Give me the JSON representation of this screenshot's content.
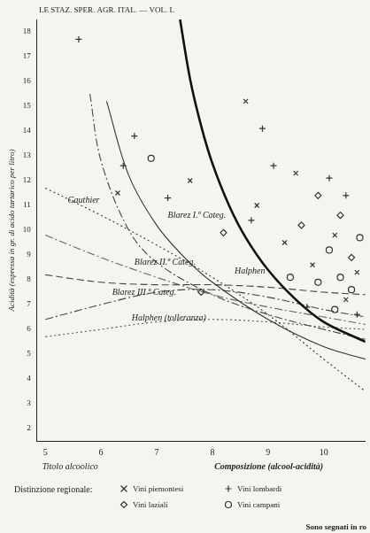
{
  "chart_data": {
    "type": "scatter",
    "title": "LE STAZ. SPER. AGR. ITAL. — VOL. L",
    "ylabel": "Acidità (espressa in gr. di acido tartarico per litro)",
    "xlabel": [
      "Titolo alcoolico",
      "Composizione (alcool-acidità)"
    ],
    "xlim": [
      4.85,
      10.75
    ],
    "xticks": [
      5,
      6,
      7,
      8,
      9,
      10
    ],
    "ylim": [
      1.5,
      18.5
    ],
    "yticks": [
      2,
      3,
      4,
      5,
      6,
      7,
      8,
      9,
      10,
      11,
      12,
      13,
      14,
      15,
      16,
      17,
      18
    ],
    "grid": false,
    "legend": "bottom",
    "legend_title": "Distinzione regionale:",
    "footnote": "Sono segnati in ro",
    "series": [
      {
        "name": "Vini piemontesi",
        "type": "scatter",
        "marker": "x",
        "color": "#333333",
        "x": [
          6.3,
          8.8,
          9.5,
          10.2,
          9.8,
          10.4,
          8.6,
          7.6,
          10.6,
          9.3
        ],
        "values": [
          11.5,
          11.0,
          12.3,
          9.8,
          8.6,
          7.2,
          15.2,
          12.0,
          8.3,
          9.5
        ]
      },
      {
        "name": "Vini laziali",
        "type": "scatter",
        "marker": "diamond",
        "color": "#333333",
        "x": [
          7.8,
          9.9,
          10.3,
          10.5,
          8.2,
          9.6
        ],
        "values": [
          7.5,
          11.4,
          10.6,
          8.9,
          9.9,
          10.2
        ]
      },
      {
        "name": "Vini lombardi",
        "type": "scatter",
        "marker": "plus",
        "color": "#333333",
        "x": [
          5.6,
          6.4,
          6.6,
          7.2,
          9.1,
          8.9,
          10.1,
          10.4,
          9.7,
          10.6,
          8.7
        ],
        "values": [
          17.7,
          12.6,
          13.8,
          11.3,
          12.6,
          14.1,
          12.1,
          11.4,
          6.9,
          6.6,
          10.4
        ]
      },
      {
        "name": "Vini campani",
        "type": "scatter",
        "marker": "circle",
        "color": "#333333",
        "x": [
          10.1,
          10.3,
          10.5,
          9.9,
          10.65,
          9.4,
          10.2,
          6.9
        ],
        "values": [
          9.2,
          8.1,
          7.6,
          7.9,
          9.7,
          8.1,
          6.8,
          12.9
        ]
      },
      {
        "type": "line",
        "line_style": "bold",
        "color": "#111111",
        "x": [
          7.42,
          7.6,
          7.8,
          8.0,
          8.3,
          8.6,
          9.0,
          9.5,
          10.0,
          10.75
        ],
        "values": [
          18.5,
          16.1,
          14.2,
          12.7,
          11.0,
          9.7,
          8.4,
          7.2,
          6.3,
          5.5
        ]
      },
      {
        "type": "line",
        "line_style": "solid",
        "color": "#333333",
        "x": [
          6.1,
          6.5,
          7.0,
          7.5,
          8.0,
          9.0,
          10.0,
          10.75
        ],
        "values": [
          15.2,
          12.2,
          10.2,
          8.9,
          7.9,
          6.4,
          5.3,
          4.8
        ]
      },
      {
        "type": "line",
        "line_style": "dotted",
        "color": "#333333",
        "x": [
          5,
          6,
          7,
          8,
          9,
          10,
          10.75
        ],
        "values": [
          11.7,
          10.6,
          9.4,
          8.1,
          6.6,
          4.8,
          3.5
        ]
      },
      {
        "type": "line",
        "line_style": "dashdot",
        "color": "#444444",
        "x": [
          5.8,
          6.0,
          6.5,
          7.0,
          8.0,
          9.0,
          10.0,
          10.75
        ],
        "values": [
          15.5,
          12.8,
          10.0,
          8.7,
          7.4,
          6.6,
          6.0,
          5.6
        ]
      },
      {
        "type": "line",
        "line_style": "dashed",
        "color": "#444444",
        "x": [
          5,
          6,
          7,
          8,
          9,
          10,
          10.75
        ],
        "values": [
          8.2,
          7.9,
          7.8,
          7.8,
          7.7,
          7.5,
          7.4
        ]
      },
      {
        "type": "line",
        "line_style": "dashdot",
        "color": "#444444",
        "x": [
          5,
          6,
          7,
          8,
          9,
          10,
          10.75
        ],
        "values": [
          6.4,
          7.0,
          7.5,
          7.6,
          7.3,
          6.8,
          6.5
        ]
      },
      {
        "type": "line",
        "line_style": "dotted",
        "color": "#555555",
        "x": [
          5,
          6,
          7,
          8,
          9,
          10,
          10.75
        ],
        "values": [
          5.7,
          6.0,
          6.3,
          6.4,
          6.3,
          6.1,
          6.0
        ]
      },
      {
        "type": "line",
        "line_style": "dashdot",
        "color": "#666666",
        "x": [
          5,
          6,
          7,
          8,
          9,
          10,
          10.75
        ],
        "values": [
          9.8,
          8.9,
          8.1,
          7.4,
          6.9,
          6.5,
          6.2
        ]
      }
    ],
    "annotations": [
      {
        "text": "Gauthier",
        "x": 5.4,
        "y": 11.1
      },
      {
        "text": "Blarez I.ª Categ.",
        "x": 7.2,
        "y": 10.5
      },
      {
        "text": "Halphen",
        "x": 8.4,
        "y": 8.25
      },
      {
        "text": "Blarez II.ª Categ.",
        "x": 6.6,
        "y": 8.6
      },
      {
        "text": "Blarez III.ª Categ.",
        "x": 6.2,
        "y": 7.4
      },
      {
        "text": "Halphen (tolleranza)",
        "x": 6.55,
        "y": 6.35
      }
    ]
  }
}
